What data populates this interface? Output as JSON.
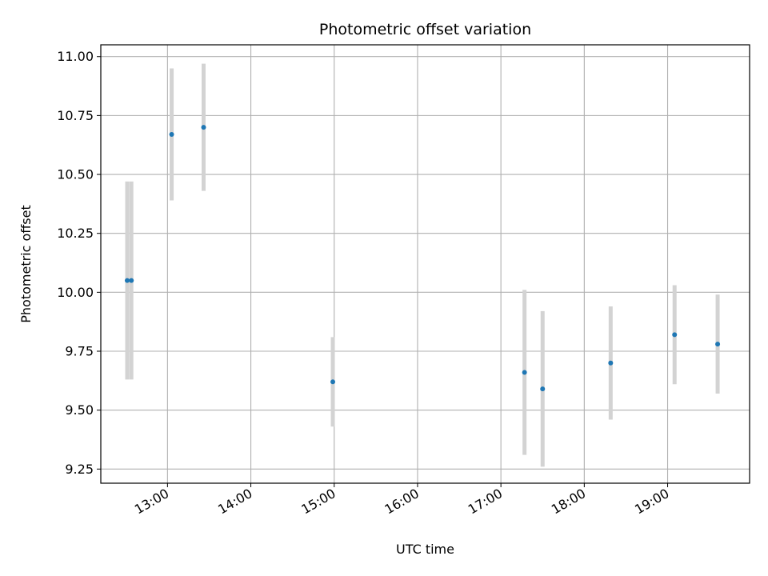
{
  "chart_data": {
    "type": "scatter",
    "title": "Photometric offset variation",
    "xlabel": "UTC time",
    "ylabel": "Photometric offset",
    "x_is_time": true,
    "xlim": [
      "12:12",
      "19:59"
    ],
    "ylim": [
      9.19,
      11.05
    ],
    "x_ticks": [
      "13:00",
      "14:00",
      "15:00",
      "16:00",
      "17:00",
      "18:00",
      "19:00"
    ],
    "y_ticks": [
      9.25,
      9.5,
      9.75,
      10.0,
      10.25,
      10.5,
      10.75,
      11.0
    ],
    "y_tick_labels": [
      "9.25",
      "9.50",
      "9.75",
      "10.00",
      "10.25",
      "10.50",
      "10.75",
      "11.00"
    ],
    "grid": true,
    "point_color": "#1f77b4",
    "errorbar_color": "#d3d3d3",
    "points": [
      {
        "x": "12:31",
        "y": 10.05,
        "yerr": 0.42
      },
      {
        "x": "12:34",
        "y": 10.05,
        "yerr": 0.42
      },
      {
        "x": "13:03",
        "y": 10.67,
        "yerr": 0.28
      },
      {
        "x": "13:26",
        "y": 10.7,
        "yerr": 0.27
      },
      {
        "x": "14:59",
        "y": 9.62,
        "yerr": 0.19
      },
      {
        "x": "17:17",
        "y": 9.66,
        "yerr": 0.35
      },
      {
        "x": "17:30",
        "y": 9.59,
        "yerr": 0.33
      },
      {
        "x": "18:19",
        "y": 9.7,
        "yerr": 0.24
      },
      {
        "x": "19:05",
        "y": 9.82,
        "yerr": 0.21
      },
      {
        "x": "19:36",
        "y": 9.78,
        "yerr": 0.21
      }
    ]
  }
}
